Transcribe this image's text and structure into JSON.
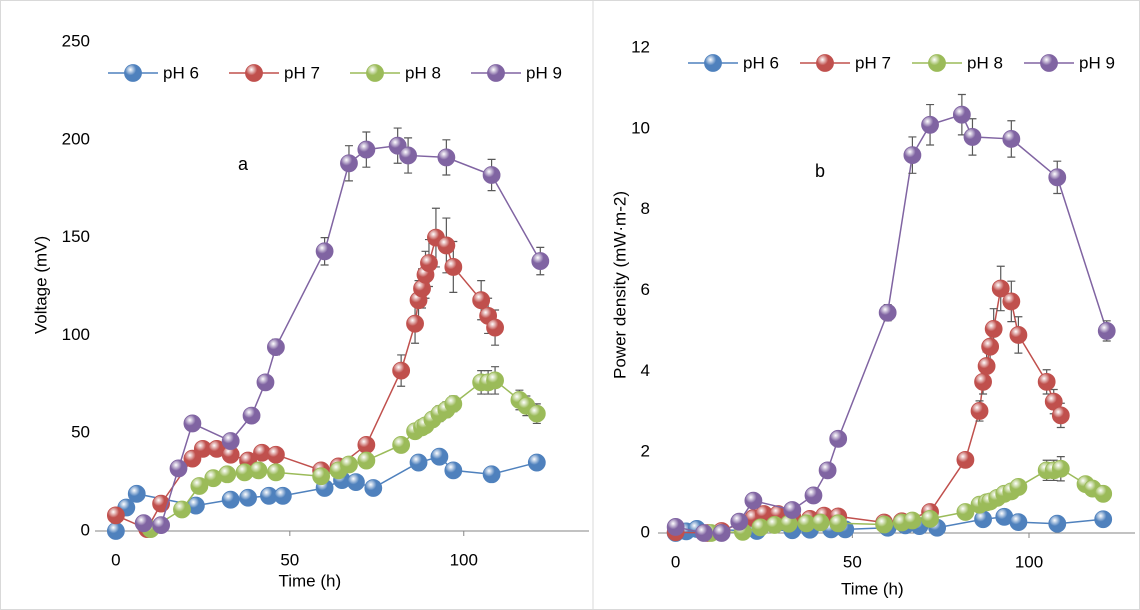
{
  "chart_data": [
    {
      "type": "line",
      "annotation": "a",
      "xlabel": "Time (h)",
      "ylabel": "Voltage (mV)",
      "xlim": [
        -6,
        136
      ],
      "ylim": [
        0,
        250
      ],
      "xticks": [
        0,
        50,
        100
      ],
      "yticks": [
        0,
        50,
        100,
        150,
        200,
        250
      ],
      "series": [
        {
          "name": "pH 6",
          "color": "#4f81bd",
          "x": [
            0,
            3,
            6,
            23,
            33,
            38,
            44,
            48,
            60,
            65,
            69,
            74,
            87,
            93,
            97,
            108,
            121
          ],
          "values": [
            0,
            12,
            19,
            13,
            16,
            17,
            18,
            18,
            22,
            26,
            25,
            22,
            35,
            38,
            31,
            29,
            35
          ],
          "errors": [
            1,
            1,
            1,
            1,
            1,
            1,
            1,
            1,
            1,
            1,
            1,
            1,
            2,
            2,
            2,
            2,
            2
          ]
        },
        {
          "name": "pH 7",
          "color": "#c0504d",
          "x": [
            0,
            9,
            13,
            22,
            25,
            29,
            33,
            38,
            42,
            46,
            59,
            64,
            72,
            82,
            86,
            87,
            88,
            89,
            90,
            92,
            95,
            97,
            105,
            107,
            109
          ],
          "values": [
            8,
            1,
            14,
            37,
            42,
            42,
            39,
            36,
            40,
            39,
            31,
            33,
            44,
            82,
            106,
            118,
            124,
            131,
            137,
            150,
            146,
            135,
            118,
            110,
            104
          ],
          "errors": [
            1,
            1,
            2,
            3,
            3,
            3,
            3,
            3,
            3,
            3,
            3,
            3,
            3,
            8,
            10,
            10,
            10,
            12,
            12,
            15,
            14,
            13,
            10,
            9,
            9
          ]
        },
        {
          "name": "pH 8",
          "color": "#9bbb59",
          "x": [
            10,
            19,
            24,
            28,
            32,
            37,
            41,
            46,
            59,
            64,
            67,
            72,
            82,
            86,
            88,
            89,
            91,
            93,
            95,
            97,
            105,
            107,
            109,
            116,
            118,
            121
          ],
          "values": [
            1,
            11,
            23,
            27,
            29,
            30,
            31,
            30,
            28,
            31,
            34,
            36,
            44,
            51,
            53,
            54,
            57,
            60,
            62,
            65,
            76,
            76,
            77,
            67,
            64,
            60
          ],
          "errors": [
            1,
            1,
            2,
            2,
            2,
            2,
            2,
            2,
            2,
            2,
            2,
            2,
            3,
            3,
            3,
            3,
            3,
            4,
            4,
            4,
            6,
            6,
            7,
            5,
            5,
            5
          ]
        },
        {
          "name": "pH 9",
          "color": "#8064a2",
          "x": [
            8,
            13,
            18,
            22,
            33,
            39,
            43,
            46,
            60,
            67,
            72,
            81,
            84,
            95,
            108,
            122
          ],
          "values": [
            4,
            3,
            32,
            55,
            46,
            59,
            76,
            94,
            143,
            188,
            195,
            197,
            192,
            191,
            182,
            138
          ],
          "errors": [
            1,
            1,
            3,
            3,
            3,
            3,
            3,
            4,
            7,
            9,
            9,
            9,
            9,
            9,
            8,
            7
          ]
        }
      ]
    },
    {
      "type": "line",
      "annotation": "b",
      "xlabel": "Time (h)",
      "ylabel": "Power density (mW·m-2)",
      "xlim": [
        -5,
        130
      ],
      "ylim": [
        0,
        12
      ],
      "xticks": [
        0,
        50,
        100
      ],
      "yticks": [
        0,
        2,
        4,
        6,
        8,
        10,
        12
      ],
      "series": [
        {
          "name": "pH 6",
          "color": "#4f81bd",
          "x": [
            0,
            3,
            6,
            23,
            33,
            38,
            44,
            48,
            60,
            65,
            69,
            74,
            87,
            93,
            97,
            108,
            121
          ],
          "values": [
            0,
            0.04,
            0.1,
            0.05,
            0.07,
            0.08,
            0.09,
            0.09,
            0.13,
            0.19,
            0.17,
            0.13,
            0.34,
            0.4,
            0.27,
            0.23,
            0.34
          ],
          "errors": [
            0.02,
            0.02,
            0.02,
            0.02,
            0.02,
            0.02,
            0.02,
            0.02,
            0.02,
            0.02,
            0.02,
            0.02,
            0.04,
            0.05,
            0.04,
            0.04,
            0.04
          ]
        },
        {
          "name": "pH 7",
          "color": "#c0504d",
          "x": [
            0,
            9,
            13,
            22,
            25,
            29,
            33,
            38,
            42,
            46,
            59,
            64,
            72,
            82,
            86,
            87,
            88,
            89,
            90,
            92,
            95,
            97,
            105,
            107,
            109
          ],
          "values": [
            0.02,
            0,
            0.05,
            0.37,
            0.47,
            0.47,
            0.41,
            0.35,
            0.43,
            0.41,
            0.26,
            0.29,
            0.52,
            1.81,
            3.02,
            3.74,
            4.13,
            4.61,
            5.05,
            6.05,
            5.73,
            4.9,
            3.74,
            3.25,
            2.91
          ],
          "errors": [
            0.02,
            0.02,
            0.02,
            0.05,
            0.05,
            0.05,
            0.05,
            0.05,
            0.05,
            0.05,
            0.05,
            0.05,
            0.05,
            0.15,
            0.25,
            0.3,
            0.35,
            0.45,
            0.5,
            0.55,
            0.5,
            0.45,
            0.3,
            0.3,
            0.3
          ]
        },
        {
          "name": "pH 8",
          "color": "#9bbb59",
          "x": [
            10,
            19,
            24,
            28,
            32,
            37,
            41,
            46,
            59,
            64,
            67,
            72,
            82,
            86,
            88,
            89,
            91,
            93,
            95,
            97,
            105,
            107,
            109,
            116,
            118,
            121
          ],
          "values": [
            0,
            0.03,
            0.14,
            0.2,
            0.23,
            0.24,
            0.26,
            0.24,
            0.21,
            0.26,
            0.31,
            0.35,
            0.52,
            0.7,
            0.76,
            0.78,
            0.87,
            0.97,
            1.03,
            1.14,
            1.55,
            1.55,
            1.59,
            1.21,
            1.1,
            0.97
          ],
          "errors": [
            0.02,
            0.02,
            0.03,
            0.03,
            0.03,
            0.03,
            0.03,
            0.03,
            0.03,
            0.03,
            0.03,
            0.03,
            0.04,
            0.05,
            0.05,
            0.05,
            0.06,
            0.07,
            0.07,
            0.08,
            0.25,
            0.25,
            0.3,
            0.12,
            0.1,
            0.1
          ]
        },
        {
          "name": "pH 9",
          "color": "#8064a2",
          "x": [
            0,
            8,
            13,
            18,
            22,
            33,
            39,
            43,
            46,
            60,
            67,
            72,
            81,
            84,
            95,
            108,
            122
          ],
          "values": [
            0.15,
            0,
            0,
            0.28,
            0.8,
            0.57,
            0.93,
            1.55,
            2.33,
            5.45,
            9.35,
            10.1,
            10.35,
            9.8,
            9.75,
            8.8,
            5.0
          ],
          "errors": [
            0.02,
            0.02,
            0.02,
            0.05,
            0.06,
            0.05,
            0.06,
            0.07,
            0.1,
            0.2,
            0.45,
            0.5,
            0.5,
            0.45,
            0.45,
            0.4,
            0.25
          ]
        }
      ]
    }
  ]
}
